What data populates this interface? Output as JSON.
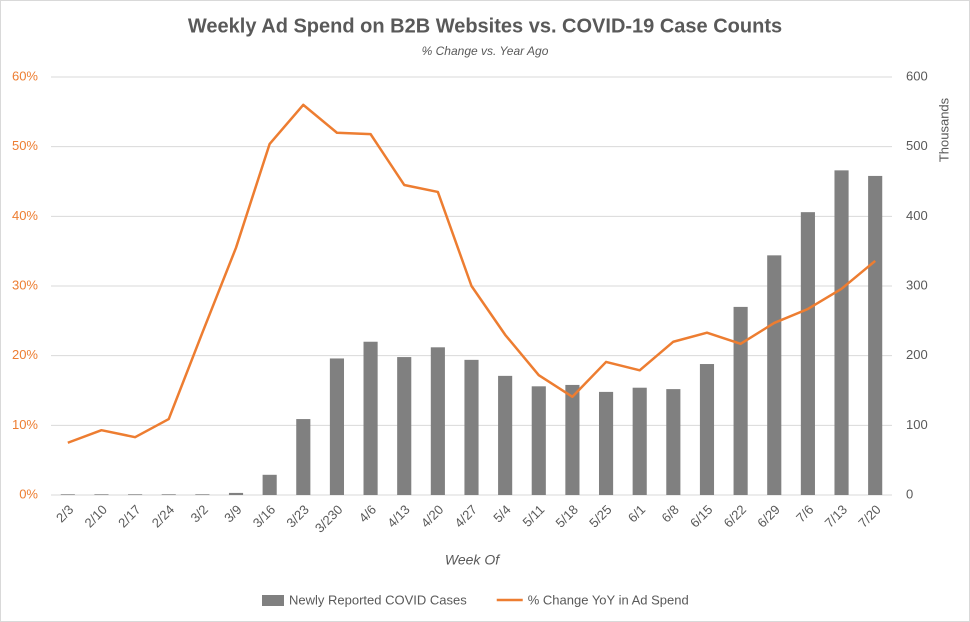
{
  "chart_data": {
    "type": "combo",
    "title": "Weekly Ad Spend on B2B Websites vs. COVID-19 Case Counts",
    "subtitle": "% Change vs. Year Ago",
    "x_label": "Week Of",
    "y2_label": "Thousands",
    "categories": [
      "2/3",
      "2/10",
      "2/17",
      "2/24",
      "3/2",
      "3/9",
      "3/16",
      "3/23",
      "3/230",
      "4/6",
      "4/13",
      "4/20",
      "4/27",
      "5/4",
      "5/11",
      "5/18",
      "5/25",
      "6/1",
      "6/8",
      "6/15",
      "6/22",
      "6/29",
      "7/6",
      "7/13",
      "7/20"
    ],
    "series": [
      {
        "name": "Newly Reported COVID Cases",
        "type": "bar",
        "axis": "y2",
        "color": "#808080",
        "values": [
          1,
          1,
          1,
          1,
          1,
          3,
          29,
          109,
          196,
          220,
          198,
          212,
          194,
          171,
          156,
          158,
          148,
          154,
          152,
          188,
          270,
          344,
          406,
          466,
          458
        ]
      },
      {
        "name": "% Change YoY in Ad Spend",
        "type": "line",
        "axis": "y",
        "color": "#ed7d31",
        "values": [
          7.5,
          9.3,
          8.3,
          10.9,
          23.3,
          35.5,
          50.4,
          56.0,
          52.0,
          51.8,
          44.5,
          43.5,
          30.0,
          23.0,
          17.2,
          14.1,
          19.1,
          17.9,
          22.0,
          23.3,
          21.7,
          24.7,
          26.7,
          29.6,
          33.6
        ]
      }
    ],
    "ylim": [
      0,
      60
    ],
    "yticks": [
      {
        "value": 0,
        "label": "0%"
      },
      {
        "value": 10,
        "label": "10%"
      },
      {
        "value": 20,
        "label": "20%"
      },
      {
        "value": 30,
        "label": "30%"
      },
      {
        "value": 40,
        "label": "40%"
      },
      {
        "value": 50,
        "label": "50%"
      },
      {
        "value": 60,
        "label": "60%"
      }
    ],
    "y2lim": [
      0,
      600
    ],
    "y2ticks": [
      0,
      100,
      200,
      300,
      400,
      500,
      600
    ],
    "grid": true,
    "legend": "bottom"
  }
}
